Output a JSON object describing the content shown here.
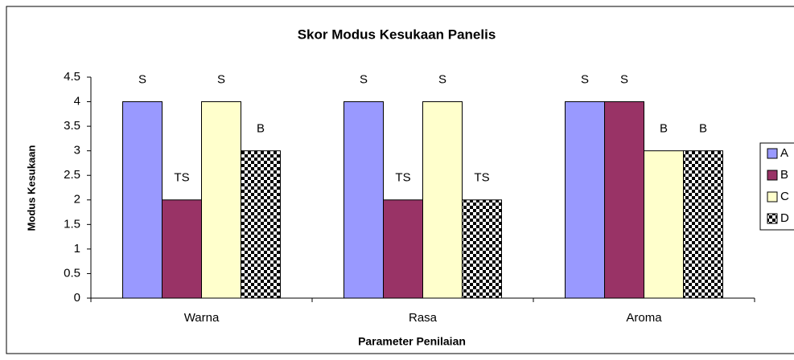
{
  "chart_data": {
    "type": "bar",
    "title": "Skor Modus Kesukaan Panelis",
    "xlabel": "Parameter Penilaian",
    "ylabel": "Modus Kesukaan",
    "categories": [
      "Warna",
      "Rasa",
      "Aroma"
    ],
    "series": [
      {
        "name": "A",
        "color": "#9999ff",
        "values": [
          4,
          4,
          4
        ],
        "value_labels": [
          "S",
          "S",
          "S"
        ]
      },
      {
        "name": "B",
        "color": "#993366",
        "values": [
          2,
          2,
          4
        ],
        "value_labels": [
          "TS",
          "TS",
          "S"
        ]
      },
      {
        "name": "C",
        "color": "#ffffcc",
        "values": [
          4,
          4,
          3
        ],
        "value_labels": [
          "S",
          "S",
          "B"
        ]
      },
      {
        "name": "D",
        "color": "#000000",
        "pattern": "checker",
        "values": [
          3,
          2,
          3
        ],
        "value_labels": [
          "B",
          "TS",
          "B"
        ]
      }
    ],
    "ylim": [
      0,
      4.5
    ],
    "yticks": [
      0,
      0.5,
      1,
      1.5,
      2,
      2.5,
      3,
      3.5,
      4,
      4.5
    ],
    "legend": "right"
  }
}
